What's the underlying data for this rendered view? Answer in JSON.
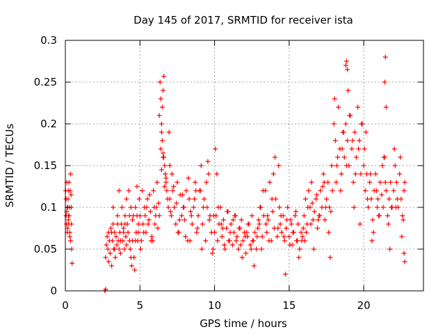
{
  "chart_data": {
    "type": "scatter",
    "title": "Day 145 of 2017, SRMTID for receiver ista",
    "xlabel": "GPS time / hours",
    "ylabel": "SRMTID / TECUs",
    "xlim": [
      0,
      24
    ],
    "ylim": [
      0,
      0.3
    ],
    "xticks": [
      0,
      5,
      10,
      15,
      20
    ],
    "xtick_labels": [
      "0",
      "5",
      "10",
      "15",
      "20"
    ],
    "yticks": [
      0,
      0.05,
      0.1,
      0.15,
      0.2,
      0.25,
      0.3
    ],
    "ytick_labels": [
      "0",
      "0.05",
      "0.1",
      "0.15",
      "0.2",
      "0.25",
      "0.3"
    ],
    "grid": true,
    "marker": "+",
    "color": "#ff0000",
    "series": [
      {
        "x": [
          0.02,
          0.05,
          0.08,
          0.1,
          0.12,
          0.15,
          0.18,
          0.2,
          0.22,
          0.25,
          0.28,
          0.3,
          0.32,
          0.35,
          0.38,
          0.4,
          0.42,
          0.45,
          0.1,
          0.2,
          0.3,
          0.05,
          0.15,
          0.25,
          0.35,
          0.12,
          0.22,
          0.4,
          2.65,
          2.7,
          2.7,
          2.75,
          2.8,
          2.85,
          2.9,
          2.95,
          3.0,
          3.05,
          3.1,
          3.15,
          3.2,
          3.25,
          3.3,
          3.35,
          3.4,
          3.45,
          3.5,
          3.55,
          3.6,
          3.65,
          3.7,
          3.75,
          3.8,
          3.85,
          3.9,
          3.95,
          4.0,
          4.05,
          4.1,
          4.15,
          4.2,
          4.25,
          4.3,
          4.35,
          4.4,
          4.45,
          4.5,
          4.55,
          4.6,
          4.65,
          4.7,
          4.75,
          4.8,
          4.85,
          4.9,
          4.95,
          2.9,
          3.1,
          3.3,
          3.5,
          3.7,
          3.9,
          4.1,
          4.3,
          4.5,
          4.7,
          4.9,
          3.2,
          3.6,
          4.0,
          4.4,
          4.8,
          5.0,
          5.1,
          5.2,
          5.3,
          5.4,
          5.5,
          5.6,
          5.7,
          5.8,
          5.9,
          6.0,
          6.1,
          6.2,
          6.3,
          5.05,
          5.25,
          5.45,
          5.65,
          5.85,
          6.05,
          6.25,
          5.15,
          5.35,
          5.55,
          5.75,
          5.95,
          6.15,
          6.3,
          6.35,
          6.4,
          6.45,
          6.5,
          6.55,
          6.6,
          6.65,
          6.7,
          6.75,
          6.8,
          6.85,
          6.9,
          6.95,
          7.0,
          6.4,
          6.45,
          6.5,
          6.55,
          6.6,
          6.45,
          6.55,
          6.65,
          6.75,
          7.0,
          7.1,
          7.2,
          7.3,
          7.4,
          7.5,
          7.6,
          7.7,
          7.8,
          7.9,
          8.0,
          8.1,
          8.2,
          8.3,
          8.4,
          8.5,
          8.6,
          8.7,
          8.8,
          8.9,
          9.0,
          9.1,
          9.2,
          9.3,
          9.4,
          9.5,
          9.6,
          9.7,
          9.8,
          9.9,
          7.05,
          7.25,
          7.45,
          7.65,
          7.85,
          8.05,
          8.25,
          8.45,
          8.65,
          8.85,
          9.05,
          9.25,
          9.45,
          9.65,
          9.85,
          7.15,
          7.55,
          7.95,
          8.35,
          8.75,
          9.15,
          9.55,
          9.95,
          10.0,
          10.1,
          10.2,
          10.3,
          10.4,
          10.5,
          10.6,
          10.7,
          10.8,
          10.9,
          11.0,
          11.1,
          11.2,
          11.3,
          11.4,
          11.5,
          11.6,
          11.7,
          11.8,
          11.9,
          12.0,
          12.1,
          12.2,
          12.3,
          12.4,
          12.5,
          12.6,
          12.7,
          12.8,
          12.9,
          10.05,
          10.25,
          10.45,
          10.65,
          10.85,
          11.05,
          11.25,
          11.45,
          11.65,
          11.85,
          12.05,
          12.25,
          12.45,
          12.65,
          12.85,
          10.15,
          10.55,
          10.95,
          11.35,
          11.75,
          12.15,
          12.55,
          12.95,
          13.0,
          13.1,
          13.2,
          13.3,
          13.4,
          13.5,
          13.6,
          13.7,
          13.8,
          13.9,
          14.0,
          14.1,
          14.2,
          14.3,
          14.4,
          14.5,
          14.6,
          14.7,
          14.8,
          14.9,
          15.0,
          15.1,
          15.2,
          15.3,
          15.4,
          15.5,
          15.6,
          15.7,
          15.8,
          15.9,
          13.05,
          13.25,
          13.45,
          13.65,
          13.85,
          14.05,
          14.25,
          14.45,
          14.65,
          14.85,
          15.05,
          15.25,
          15.45,
          15.65,
          15.85,
          13.15,
          13.55,
          13.95,
          14.35,
          14.75,
          15.15,
          15.55,
          15.95,
          16.0,
          16.1,
          16.2,
          16.3,
          16.4,
          16.5,
          16.6,
          16.7,
          16.8,
          16.9,
          17.0,
          17.1,
          17.2,
          17.3,
          17.4,
          17.5,
          17.6,
          17.7,
          17.8,
          17.9,
          16.05,
          16.25,
          16.45,
          16.65,
          16.85,
          17.05,
          17.25,
          17.45,
          17.65,
          17.85,
          16.15,
          16.55,
          16.95,
          17.35,
          17.75,
          18.0,
          18.1,
          18.2,
          18.3,
          18.4,
          18.5,
          18.6,
          18.7,
          18.8,
          18.9,
          19.0,
          19.1,
          19.2,
          19.3,
          19.4,
          19.5,
          19.6,
          19.7,
          19.8,
          19.9,
          18.05,
          18.25,
          18.45,
          18.65,
          18.85,
          19.05,
          19.25,
          19.45,
          19.65,
          19.85,
          18.15,
          18.55,
          18.95,
          19.35,
          19.75,
          18.8,
          18.85,
          18.9,
          20.0,
          20.1,
          20.2,
          20.3,
          20.4,
          20.5,
          20.6,
          20.7,
          20.8,
          20.9,
          21.0,
          21.1,
          21.2,
          21.3,
          21.4,
          21.5,
          21.6,
          21.7,
          21.8,
          21.9,
          20.05,
          20.25,
          20.45,
          20.65,
          20.85,
          21.05,
          21.25,
          21.45,
          21.65,
          21.85,
          20.15,
          20.55,
          20.95,
          21.35,
          21.75,
          21.4,
          21.45,
          21.5,
          22.0,
          22.1,
          22.2,
          22.3,
          22.4,
          22.5,
          22.6,
          22.7,
          22.75,
          22.05,
          22.25,
          22.45,
          22.65,
          22.15,
          22.55,
          22.7,
          22.75
        ],
        "y": [
          0.12,
          0.09,
          0.08,
          0.13,
          0.07,
          0.1,
          0.11,
          0.12,
          0.08,
          0.09,
          0.1,
          0.065,
          0.12,
          0.14,
          0.115,
          0.1,
          0.05,
          0.033,
          0.095,
          0.085,
          0.07,
          0.11,
          0.075,
          0.13,
          0.06,
          0.1,
          0.09,
          0.08,
          0.0,
          0.002,
          0.04,
          0.055,
          0.065,
          0.05,
          0.07,
          0.06,
          0.045,
          0.075,
          0.03,
          0.06,
          0.08,
          0.05,
          0.07,
          0.04,
          0.065,
          0.055,
          0.09,
          0.06,
          0.05,
          0.07,
          0.045,
          0.08,
          0.1,
          0.06,
          0.07,
          0.05,
          0.09,
          0.065,
          0.11,
          0.08,
          0.07,
          0.12,
          0.06,
          0.05,
          0.04,
          0.03,
          0.06,
          0.09,
          0.04,
          0.025,
          0.1,
          0.07,
          0.09,
          0.06,
          0.08,
          0.11,
          0.035,
          0.07,
          0.05,
          0.08,
          0.06,
          0.075,
          0.055,
          0.09,
          0.085,
          0.06,
          0.07,
          0.1,
          0.12,
          0.08,
          0.1,
          0.125,
          0.09,
          0.06,
          0.08,
          0.1,
          0.07,
          0.11,
          0.085,
          0.095,
          0.065,
          0.12,
          0.08,
          0.1,
          0.075,
          0.09,
          0.05,
          0.07,
          0.1,
          0.115,
          0.06,
          0.09,
          0.105,
          0.12,
          0.09,
          0.08,
          0.06,
          0.1,
          0.13,
          0.21,
          0.25,
          0.23,
          0.2,
          0.18,
          0.165,
          0.16,
          0.15,
          0.14,
          0.13,
          0.12,
          0.11,
          0.1,
          0.19,
          0.15,
          0.17,
          0.19,
          0.22,
          0.24,
          0.257,
          0.145,
          0.16,
          0.125,
          0.135,
          0.11,
          0.09,
          0.12,
          0.1,
          0.08,
          0.13,
          0.07,
          0.115,
          0.09,
          0.1,
          0.085,
          0.12,
          0.06,
          0.11,
          0.095,
          0.08,
          0.1,
          0.13,
          0.07,
          0.09,
          0.12,
          0.15,
          0.08,
          0.11,
          0.06,
          0.1,
          0.14,
          0.09,
          0.07,
          0.05,
          0.095,
          0.125,
          0.105,
          0.085,
          0.115,
          0.065,
          0.135,
          0.09,
          0.11,
          0.075,
          0.12,
          0.1,
          0.13,
          0.085,
          0.045,
          0.14,
          0.07,
          0.1,
          0.06,
          0.12,
          0.05,
          0.155,
          0.09,
          0.07,
          0.09,
          0.06,
          0.08,
          0.1,
          0.065,
          0.085,
          0.05,
          0.075,
          0.095,
          0.06,
          0.08,
          0.055,
          0.07,
          0.09,
          0.065,
          0.05,
          0.075,
          0.085,
          0.06,
          0.07,
          0.045,
          0.065,
          0.08,
          0.055,
          0.09,
          0.06,
          0.07,
          0.05,
          0.075,
          0.17,
          0.1,
          0.08,
          0.055,
          0.095,
          0.07,
          0.085,
          0.06,
          0.075,
          0.04,
          0.065,
          0.08,
          0.05,
          0.03,
          0.065,
          0.14,
          0.075,
          0.06,
          0.09,
          0.055,
          0.07,
          0.06,
          0.085,
          0.08,
          0.1,
          0.065,
          0.09,
          0.12,
          0.07,
          0.085,
          0.13,
          0.06,
          0.095,
          0.075,
          0.11,
          0.065,
          0.15,
          0.08,
          0.07,
          0.09,
          0.06,
          0.075,
          0.1,
          0.065,
          0.085,
          0.055,
          0.07,
          0.09,
          0.06,
          0.08,
          0.05,
          0.07,
          0.065,
          0.1,
          0.12,
          0.08,
          0.06,
          0.11,
          0.16,
          0.075,
          0.09,
          0.065,
          0.085,
          0.055,
          0.07,
          0.095,
          0.04,
          0.06,
          0.05,
          0.09,
          0.14,
          0.1,
          0.02,
          0.08,
          0.06,
          0.075,
          0.09,
          0.11,
          0.08,
          0.12,
          0.1,
          0.13,
          0.085,
          0.095,
          0.11,
          0.075,
          0.09,
          0.12,
          0.1,
          0.14,
          0.085,
          0.11,
          0.13,
          0.1,
          0.095,
          0.12,
          0.06,
          0.1,
          0.08,
          0.05,
          0.115,
          0.09,
          0.125,
          0.1,
          0.07,
          0.15,
          0.07,
          0.105,
          0.085,
          0.13,
          0.04,
          0.2,
          0.18,
          0.15,
          0.22,
          0.17,
          0.14,
          0.19,
          0.16,
          0.2,
          0.18,
          0.15,
          0.21,
          0.17,
          0.13,
          0.19,
          0.16,
          0.22,
          0.18,
          0.14,
          0.2,
          0.23,
          0.16,
          0.12,
          0.19,
          0.15,
          0.21,
          0.18,
          0.14,
          0.17,
          0.2,
          0.13,
          0.17,
          0.24,
          0.1,
          0.08,
          0.27,
          0.275,
          0.265,
          0.15,
          0.12,
          0.14,
          0.1,
          0.13,
          0.11,
          0.085,
          0.12,
          0.14,
          0.1,
          0.09,
          0.13,
          0.115,
          0.1,
          0.16,
          0.12,
          0.09,
          0.11,
          0.13,
          0.1,
          0.17,
          0.11,
          0.14,
          0.07,
          0.12,
          0.09,
          0.15,
          0.13,
          0.08,
          0.1,
          0.19,
          0.06,
          0.11,
          0.16,
          0.05,
          0.25,
          0.28,
          0.22,
          0.12,
          0.15,
          0.13,
          0.1,
          0.14,
          0.11,
          0.09,
          0.12,
          0.13,
          0.17,
          0.11,
          0.16,
          0.085,
          0.1,
          0.065,
          0.045,
          0.035
        ]
      }
    ]
  }
}
